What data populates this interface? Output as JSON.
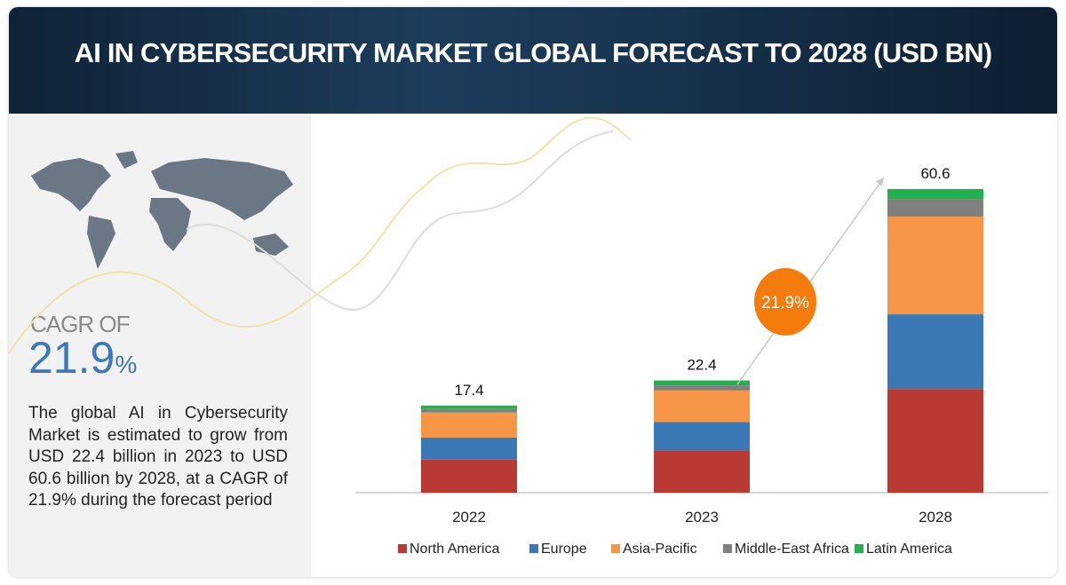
{
  "header": {
    "title": "AI IN CYBERSECURITY MARKET GLOBAL FORECAST TO 2028 (USD BN)"
  },
  "sidebar": {
    "cagr_label": "CAGR OF",
    "cagr_value": "21.9",
    "cagr_unit": "%",
    "description": "The global AI in Cybersecurity Market is estimated to grow from USD 22.4 billion in 2023 to USD 60.6 billion by 2028, at a CAGR of 21.9% during the forecast period"
  },
  "chart_data": {
    "type": "bar",
    "stacked": true,
    "title": "AI IN CYBERSECURITY MARKET GLOBAL FORECAST TO 2028 (USD BN)",
    "categories": [
      "2022",
      "2023",
      "2028"
    ],
    "totals": [
      "17.4",
      "22.4",
      "60.6"
    ],
    "total_values": [
      17.4,
      22.4,
      60.6
    ],
    "series": [
      {
        "name": "North America",
        "color": "#b83a32",
        "values": [
          6.6,
          8.4,
          20.7
        ]
      },
      {
        "name": "Europe",
        "color": "#3a78b6",
        "values": [
          4.4,
          5.7,
          14.9
        ]
      },
      {
        "name": "Asia-Pacific",
        "color": "#f79646",
        "values": [
          5.0,
          6.3,
          19.5
        ]
      },
      {
        "name": "Middle-East Africa",
        "color": "#808080",
        "values": [
          0.7,
          1.0,
          3.5
        ]
      },
      {
        "name": "Latin America",
        "color": "#21b14d",
        "values": [
          0.7,
          1.0,
          2.0
        ]
      }
    ],
    "annotation": "21.9%",
    "annotation_color": "#f47c0c",
    "legend_position": "bottom",
    "grid": false,
    "ylim": [
      0,
      60.6
    ]
  }
}
